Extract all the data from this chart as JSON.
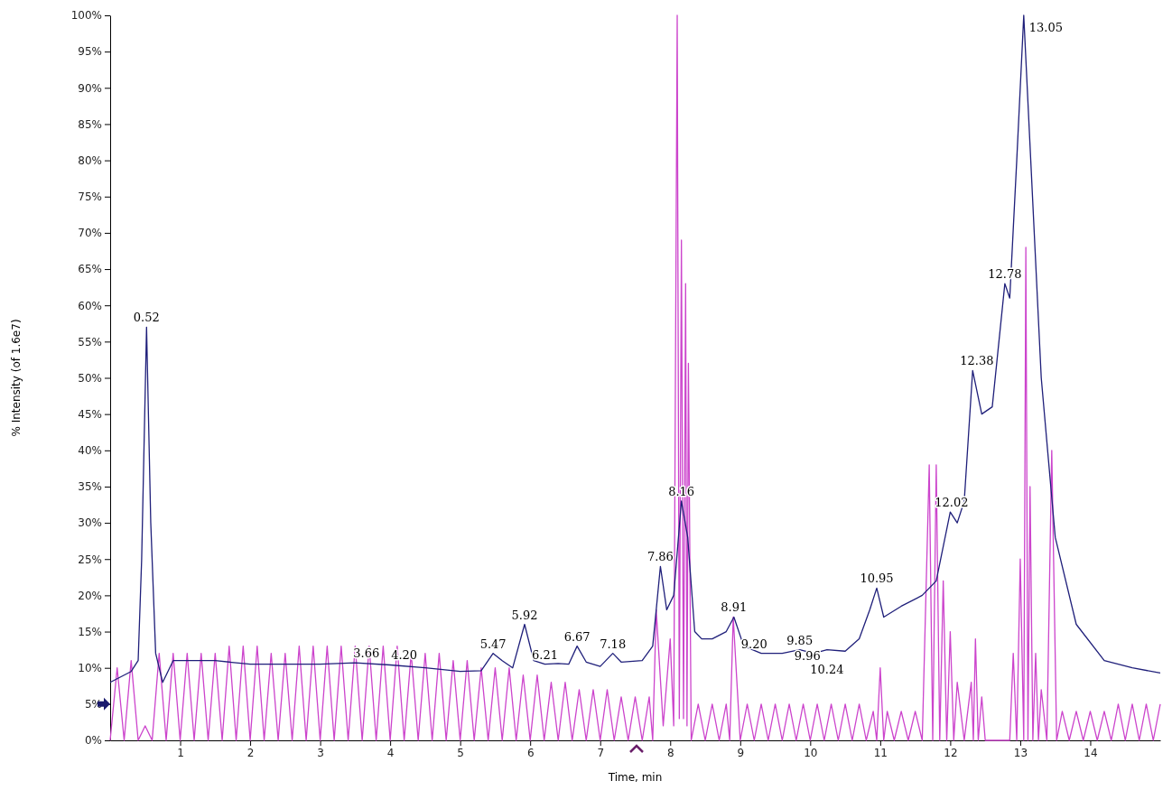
{
  "chart_data": {
    "type": "line",
    "xlabel": "Time, min",
    "ylabel": "% Intensity (of 1.6e7)",
    "xlim": [
      0,
      15
    ],
    "xticks": [
      1,
      2,
      3,
      4,
      5,
      6,
      7,
      8,
      9,
      10,
      11,
      12,
      13,
      14
    ],
    "ylim": [
      0,
      100
    ],
    "yticks": [
      {
        "value": 0,
        "label": "0%"
      },
      {
        "value": 5,
        "label": "5%"
      },
      {
        "value": 10,
        "label": "10%"
      },
      {
        "value": 15,
        "label": "15%"
      },
      {
        "value": 20,
        "label": "20%"
      },
      {
        "value": 25,
        "label": "25%"
      },
      {
        "value": 30,
        "label": "30%"
      },
      {
        "value": 35,
        "label": "35%"
      },
      {
        "value": 40,
        "label": "40%"
      },
      {
        "value": 45,
        "label": "45%"
      },
      {
        "value": 50,
        "label": "50%"
      },
      {
        "value": 55,
        "label": "55%"
      },
      {
        "value": 60,
        "label": "60%"
      },
      {
        "value": 65,
        "label": "65%"
      },
      {
        "value": 70,
        "label": "70%"
      },
      {
        "value": 75,
        "label": "75%"
      },
      {
        "value": 80,
        "label": "80%"
      },
      {
        "value": 85,
        "label": "85%"
      },
      {
        "value": 90,
        "label": "90%"
      },
      {
        "value": 95,
        "label": "95%"
      },
      {
        "value": 100,
        "label": "100%"
      }
    ],
    "grid": false,
    "marker": "none",
    "line_style": "solid",
    "series": [
      {
        "color": "#cc44cc",
        "x": [
          0,
          0.1,
          0.2,
          0.3,
          0.4,
          0.5,
          0.6,
          0.7,
          0.8,
          0.9,
          1.0,
          1.1,
          1.2,
          1.3,
          1.4,
          1.5,
          1.6,
          1.7,
          1.8,
          1.9,
          2.0,
          2.1,
          2.2,
          2.3,
          2.4,
          2.5,
          2.6,
          2.7,
          2.8,
          2.9,
          3.0,
          3.1,
          3.2,
          3.3,
          3.4,
          3.5,
          3.6,
          3.7,
          3.8,
          3.9,
          4.0,
          4.1,
          4.2,
          4.3,
          4.4,
          4.5,
          4.6,
          4.7,
          4.8,
          4.9,
          5.0,
          5.1,
          5.2,
          5.3,
          5.4,
          5.5,
          5.6,
          5.7,
          5.8,
          5.9,
          6.0,
          6.1,
          6.2,
          6.3,
          6.4,
          6.5,
          6.6,
          6.7,
          6.8,
          6.9,
          7.0,
          7.1,
          7.2,
          7.3,
          7.4,
          7.5,
          7.6,
          7.7,
          7.75,
          7.8,
          7.9,
          8.0,
          8.05,
          8.1,
          8.13,
          8.16,
          8.19,
          8.22,
          8.24,
          8.26,
          8.3,
          8.4,
          8.5,
          8.6,
          8.7,
          8.8,
          8.85,
          8.9,
          9.0,
          9.1,
          9.2,
          9.3,
          9.4,
          9.5,
          9.6,
          9.7,
          9.8,
          9.9,
          10.0,
          10.1,
          10.2,
          10.3,
          10.4,
          10.5,
          10.6,
          10.7,
          10.8,
          10.9,
          10.95,
          11.0,
          11.05,
          11.1,
          11.2,
          11.3,
          11.4,
          11.5,
          11.6,
          11.7,
          11.75,
          11.8,
          11.85,
          11.9,
          11.95,
          12.0,
          12.05,
          12.1,
          12.2,
          12.3,
          12.33,
          12.36,
          12.4,
          12.45,
          12.5,
          12.85,
          12.9,
          12.95,
          13.0,
          13.05,
          13.08,
          13.11,
          13.14,
          13.18,
          13.22,
          13.26,
          13.3,
          13.38,
          13.45,
          13.52,
          13.6,
          13.7,
          13.8,
          13.9,
          14.0,
          14.1,
          14.2,
          14.3,
          14.4,
          14.5,
          14.6,
          14.7,
          14.8,
          14.9,
          15.0
        ],
        "values": [
          0,
          10,
          0,
          11,
          0,
          2,
          0,
          12,
          0,
          12,
          0,
          12,
          0,
          12,
          0,
          12,
          0,
          13,
          0,
          13,
          0,
          13,
          0,
          12,
          0,
          12,
          0,
          13,
          0,
          13,
          0,
          13,
          0,
          13,
          0,
          13,
          0,
          13,
          0,
          13,
          0,
          13,
          0,
          12,
          0,
          12,
          0,
          12,
          0,
          11,
          0,
          11,
          0,
          10,
          0,
          10,
          0,
          10,
          0,
          9,
          0,
          9,
          0,
          8,
          0,
          8,
          0,
          7,
          0,
          7,
          0,
          7,
          0,
          6,
          0,
          6,
          0,
          6,
          0,
          18,
          2,
          14,
          2,
          100,
          3,
          69,
          3,
          63,
          2,
          52,
          0,
          5,
          0,
          5,
          0,
          5,
          0,
          17,
          0,
          5,
          0,
          5,
          0,
          5,
          0,
          5,
          0,
          5,
          0,
          5,
          0,
          5,
          0,
          5,
          0,
          5,
          0,
          4,
          0,
          10,
          0,
          4,
          0,
          4,
          0,
          4,
          0,
          38,
          0,
          38,
          0,
          22,
          0,
          15,
          0,
          8,
          0,
          8,
          0,
          14,
          0,
          6,
          0,
          0,
          12,
          0,
          25,
          0,
          68,
          0,
          35,
          0,
          12,
          0,
          7,
          0,
          40,
          0,
          4,
          0,
          4,
          0,
          4,
          0,
          4,
          0,
          5,
          0,
          5,
          0,
          5,
          0,
          5
        ]
      },
      {
        "color": "#1f1f7a",
        "x": [
          0,
          0.1,
          0.3,
          0.4,
          0.45,
          0.52,
          0.58,
          0.65,
          0.75,
          0.9,
          1.2,
          1.5,
          2,
          2.5,
          3,
          3.5,
          4,
          4.5,
          5,
          5.3,
          5.47,
          5.6,
          5.75,
          5.92,
          6.05,
          6.21,
          6.4,
          6.55,
          6.67,
          6.8,
          7.0,
          7.18,
          7.3,
          7.6,
          7.75,
          7.86,
          7.95,
          8.05,
          8.16,
          8.25,
          8.35,
          8.45,
          8.6,
          8.8,
          8.91,
          9.05,
          9.3,
          9.6,
          9.85,
          10.05,
          10.24,
          10.5,
          10.7,
          10.85,
          10.95,
          11.05,
          11.3,
          11.6,
          11.8,
          12.0,
          12.1,
          12.2,
          12.32,
          12.45,
          12.6,
          12.78,
          12.85,
          12.95,
          13.05,
          13.15,
          13.3,
          13.5,
          13.8,
          14.2,
          14.6,
          15
        ],
        "values": [
          8,
          8.5,
          9.5,
          11,
          25,
          57,
          30,
          12,
          8,
          11,
          11,
          11,
          10.5,
          10.5,
          10.5,
          10.7,
          10.4,
          10,
          9.5,
          9.6,
          12,
          11,
          10,
          16,
          11,
          10.5,
          10.6,
          10.5,
          13,
          10.8,
          10.2,
          12,
          10.8,
          11,
          13,
          24,
          18,
          20,
          33,
          28,
          15,
          14,
          14,
          15,
          17,
          13,
          12,
          12,
          12.5,
          12,
          12.5,
          12.3,
          14,
          18,
          21,
          17,
          18.5,
          20,
          22,
          31.5,
          30,
          33,
          51,
          45,
          46,
          63,
          61,
          80,
          100,
          80,
          50,
          28,
          16,
          11,
          10,
          9.3
        ]
      }
    ],
    "annotations": [
      {
        "text": "0.52",
        "x": 0.52,
        "y": 57
      },
      {
        "text": "3.66",
        "x": 3.66,
        "y": 10.7
      },
      {
        "text": "4.20",
        "x": 4.2,
        "y": 10.4
      },
      {
        "text": "5.47",
        "x": 5.47,
        "y": 12
      },
      {
        "text": "5.92",
        "x": 5.92,
        "y": 16
      },
      {
        "text": "6.21",
        "x": 6.21,
        "y": 10.5
      },
      {
        "text": "6.67",
        "x": 6.67,
        "y": 13
      },
      {
        "text": "7.18",
        "x": 7.18,
        "y": 12
      },
      {
        "text": "7.86",
        "x": 7.86,
        "y": 24
      },
      {
        "text": "8.16",
        "x": 8.16,
        "y": 33
      },
      {
        "text": "8.91",
        "x": 8.91,
        "y": 17
      },
      {
        "text": "9.20",
        "x": 9.2,
        "y": 12
      },
      {
        "text": "9.85",
        "x": 9.85,
        "y": 12.5
      },
      {
        "text": "9.96",
        "x": 9.96,
        "y": 12.3
      },
      {
        "text": "10.24",
        "x": 10.24,
        "y": 12.5
      },
      {
        "text": "10.95",
        "x": 10.95,
        "y": 21
      },
      {
        "text": "12.02",
        "x": 12.02,
        "y": 31.5
      },
      {
        "text": "12.38",
        "x": 12.38,
        "y": 51
      },
      {
        "text": "12.78",
        "x": 12.78,
        "y": 63
      },
      {
        "text": "13.05",
        "x": 13.05,
        "y": 100
      }
    ]
  }
}
